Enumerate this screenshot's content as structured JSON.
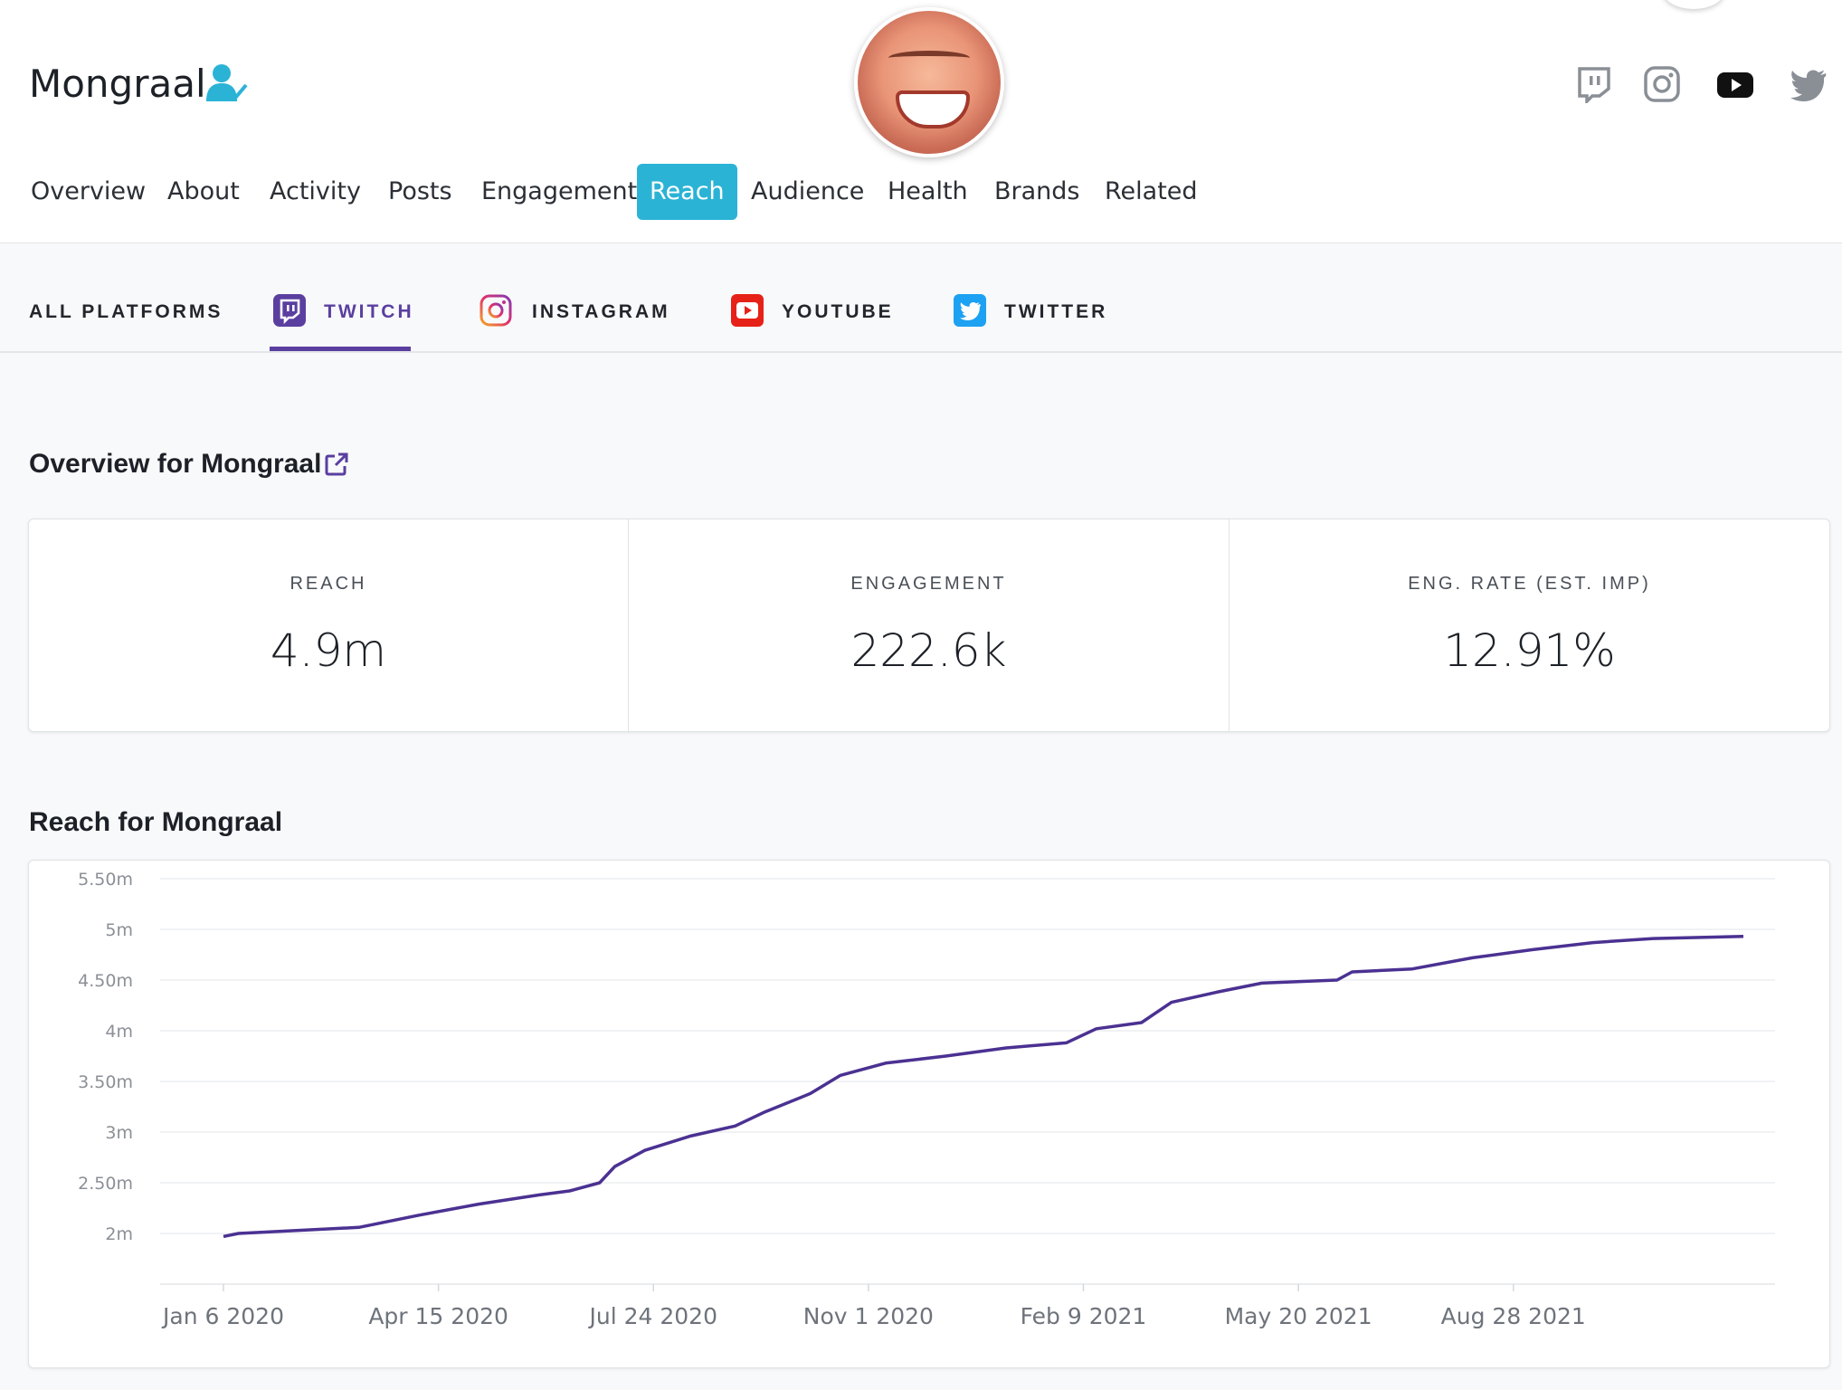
{
  "header": {
    "profile_name": "Mongraal"
  },
  "icons": {
    "verified": "verified-user-icon",
    "twitch": "twitch-icon",
    "instagram": "instagram-icon",
    "youtube": "youtube-icon",
    "twitter": "twitter-icon",
    "external_link": "external-link-icon"
  },
  "colors": {
    "accent": "#2bb3d6",
    "twitch": "#5a3fa0",
    "line": "#4b3192"
  },
  "nav": {
    "items": [
      {
        "label": "Overview"
      },
      {
        "label": "About"
      },
      {
        "label": "Activity"
      },
      {
        "label": "Posts"
      },
      {
        "label": "Engagement"
      },
      {
        "label": "Reach",
        "active": true
      },
      {
        "label": "Audience"
      },
      {
        "label": "Health"
      },
      {
        "label": "Brands"
      },
      {
        "label": "Related"
      }
    ]
  },
  "subnav": {
    "items": [
      {
        "label": "ALL PLATFORMS"
      },
      {
        "label": "TWITCH",
        "active": true
      },
      {
        "label": "INSTAGRAM"
      },
      {
        "label": "YOUTUBE"
      },
      {
        "label": "TWITTER"
      }
    ]
  },
  "overview": {
    "title": "Overview for Mongraal",
    "stats": [
      {
        "label": "REACH",
        "value": "4.9m"
      },
      {
        "label": "ENGAGEMENT",
        "value": "222.6k"
      },
      {
        "label": "ENG. RATE (EST. IMP)",
        "value": "12.91%"
      }
    ]
  },
  "reach": {
    "title": "Reach for Mongraal"
  },
  "chart_data": {
    "type": "line",
    "title": "",
    "xlabel": "",
    "ylabel": "",
    "grid": true,
    "ylim": [
      1.5,
      5.5
    ],
    "yticks": [
      {
        "value": 5.5,
        "label": "5.50m"
      },
      {
        "value": 5.0,
        "label": "5m"
      },
      {
        "value": 4.5,
        "label": "4.50m"
      },
      {
        "value": 4.0,
        "label": "4m"
      },
      {
        "value": 3.5,
        "label": "3.50m"
      },
      {
        "value": 3.0,
        "label": "3m"
      },
      {
        "value": 2.5,
        "label": "2.50m"
      },
      {
        "value": 2.0,
        "label": "2m"
      }
    ],
    "xticks": [
      "Jan 6 2020",
      "Apr 15 2020",
      "Jul 24 2020",
      "Nov 1 2020",
      "Feb 9 2021",
      "May 20 2021",
      "Aug 28 2021"
    ],
    "xlim": [
      "2020-01-06",
      "2021-12-13"
    ],
    "series": [
      {
        "color": "#4b3192",
        "points": [
          [
            "2020-01-06",
            1.97
          ],
          [
            "2020-01-13",
            2.0
          ],
          [
            "2020-02-10",
            2.03
          ],
          [
            "2020-03-09",
            2.06
          ],
          [
            "2020-04-06",
            2.18
          ],
          [
            "2020-05-04",
            2.29
          ],
          [
            "2020-06-01",
            2.38
          ],
          [
            "2020-06-15",
            2.42
          ],
          [
            "2020-06-29",
            2.5
          ],
          [
            "2020-07-06",
            2.66
          ],
          [
            "2020-07-20",
            2.82
          ],
          [
            "2020-08-10",
            2.96
          ],
          [
            "2020-08-31",
            3.06
          ],
          [
            "2020-09-14",
            3.2
          ],
          [
            "2020-10-05",
            3.38
          ],
          [
            "2020-10-19",
            3.56
          ],
          [
            "2020-11-09",
            3.68
          ],
          [
            "2020-12-07",
            3.75
          ],
          [
            "2021-01-04",
            3.83
          ],
          [
            "2021-02-01",
            3.88
          ],
          [
            "2021-02-15",
            4.02
          ],
          [
            "2021-03-08",
            4.08
          ],
          [
            "2021-03-22",
            4.28
          ],
          [
            "2021-04-12",
            4.38
          ],
          [
            "2021-05-03",
            4.47
          ],
          [
            "2021-06-07",
            4.5
          ],
          [
            "2021-06-14",
            4.58
          ],
          [
            "2021-07-12",
            4.61
          ],
          [
            "2021-08-09",
            4.72
          ],
          [
            "2021-09-06",
            4.8
          ],
          [
            "2021-10-04",
            4.87
          ],
          [
            "2021-11-01",
            4.91
          ],
          [
            "2021-12-13",
            4.93
          ]
        ]
      }
    ]
  }
}
